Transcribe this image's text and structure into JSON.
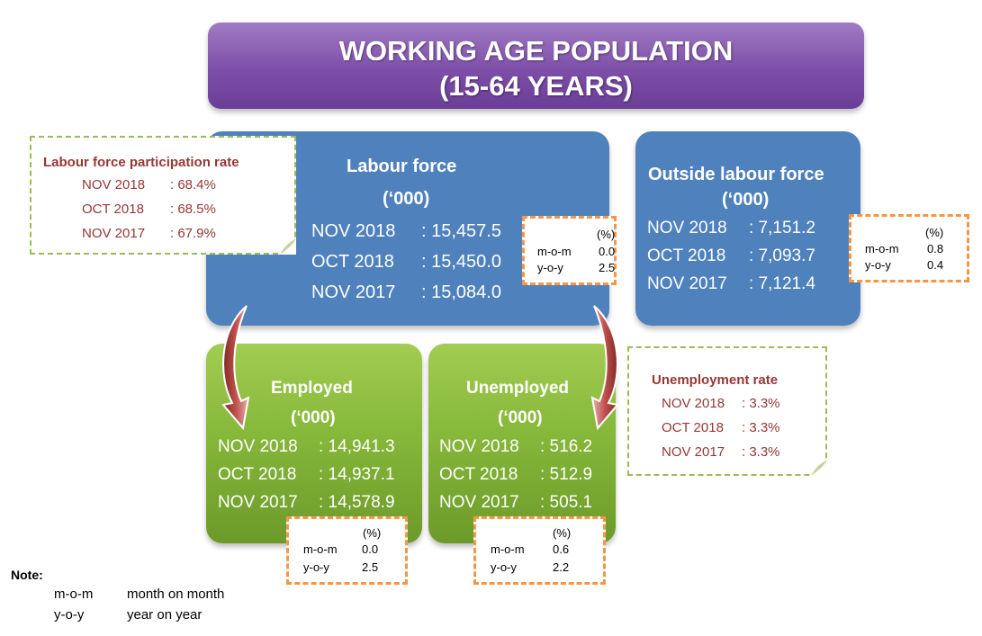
{
  "title": {
    "line1": "WORKING AGE POPULATION",
    "line2": "(15-64 YEARS)"
  },
  "labour_force": {
    "title": "Labour force",
    "unit": "(‘000)",
    "rows": [
      {
        "label": "NOV 2018",
        "value": ": 15,457.5"
      },
      {
        "label": "OCT 2018",
        "value": ": 15,450.0"
      },
      {
        "label": "NOV 2017",
        "value": ": 15,084.0"
      }
    ],
    "change": {
      "pct": "(%)",
      "mom_label": "m-o-m",
      "mom": "0.0",
      "yoy_label": "y-o-y",
      "yoy": "2.5"
    }
  },
  "outside_labour_force": {
    "title": "Outside labour force",
    "unit": "(‘000)",
    "rows": [
      {
        "label": "NOV 2018",
        "value": ": 7,151.2"
      },
      {
        "label": "OCT 2018",
        "value": ": 7,093.7"
      },
      {
        "label": "NOV 2017",
        "value": ": 7,121.4"
      }
    ],
    "change": {
      "pct": "(%)",
      "mom_label": "m-o-m",
      "mom": "0.8",
      "yoy_label": "y-o-y",
      "yoy": "0.4"
    }
  },
  "employed": {
    "title": "Employed",
    "unit": "(‘000)",
    "rows": [
      {
        "label": "NOV 2018",
        "value": ": 14,941.3"
      },
      {
        "label": "OCT 2018",
        "value": ": 14,937.1"
      },
      {
        "label": "NOV 2017",
        "value": ": 14,578.9"
      }
    ],
    "change": {
      "pct": "(%)",
      "mom_label": "m-o-m",
      "mom": "0.0",
      "yoy_label": "y-o-y",
      "yoy": "2.5"
    }
  },
  "unemployed": {
    "title": "Unemployed",
    "unit": "(‘000)",
    "rows": [
      {
        "label": "NOV 2018",
        "value": ": 516.2"
      },
      {
        "label": "OCT 2018",
        "value": ": 512.9"
      },
      {
        "label": "NOV 2017",
        "value": ": 505.1"
      }
    ],
    "change": {
      "pct": "(%)",
      "mom_label": "m-o-m",
      "mom": "0.6",
      "yoy_label": "y-o-y",
      "yoy": "2.2"
    }
  },
  "participation_rate": {
    "title": "Labour force participation rate",
    "rows": [
      {
        "label": "NOV 2018",
        "value": ": 68.4%"
      },
      {
        "label": "OCT 2018",
        "value": ": 68.5%"
      },
      {
        "label": "NOV 2017",
        "value": ": 67.9%"
      }
    ]
  },
  "unemployment_rate": {
    "title": "Unemployment rate",
    "rows": [
      {
        "label": "NOV 2018",
        "value": ": 3.3%"
      },
      {
        "label": "OCT 2018",
        "value": ": 3.3%"
      },
      {
        "label": "NOV 2017",
        "value": ": 3.3%"
      }
    ]
  },
  "note": {
    "title": "Note:",
    "items": [
      {
        "abbr": "m-o-m",
        "meaning": "month on month"
      },
      {
        "abbr": "y-o-y",
        "meaning": "year on year"
      }
    ]
  },
  "colors": {
    "banner": "#7d4fa8",
    "blue_box": "#4f81bd",
    "green_box": "#86b83a",
    "rate_text": "#953735",
    "rate_border": "#9bbb59",
    "change_border": "#f79646",
    "arrow": "#c0504d"
  }
}
